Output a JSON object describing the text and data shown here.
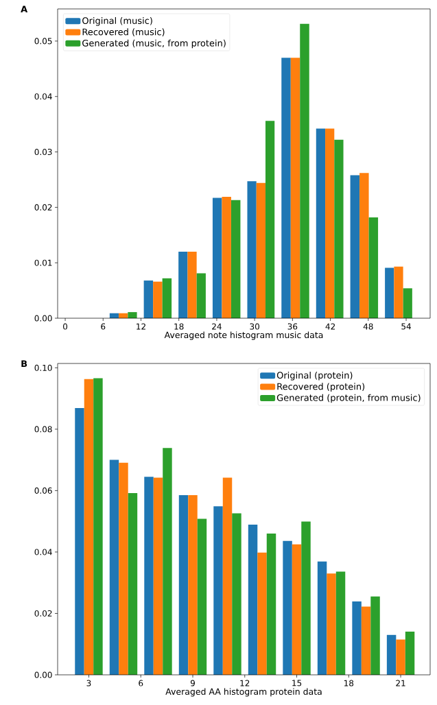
{
  "chart_data": [
    {
      "type": "histogram",
      "xlabel": "Averaged note histogram music data",
      "annotations": [
        "A"
      ],
      "bins": [
        6.5,
        11.9,
        17.4,
        22.8,
        28.3,
        33.7,
        39.2,
        44.6,
        50.1,
        55.5
      ],
      "series": [
        {
          "name": "Original (music)",
          "color": "#1f77b4",
          "values": [
            0.0009,
            0.0068,
            0.012,
            0.0217,
            0.0247,
            0.047,
            0.0342,
            0.0258,
            0.0091
          ]
        },
        {
          "name": "Recovered (music)",
          "color": "#ff7f0e",
          "values": [
            0.0009,
            0.0066,
            0.012,
            0.0219,
            0.0244,
            0.047,
            0.0342,
            0.0262,
            0.0093
          ]
        },
        {
          "name": "Generated (music, from protein)",
          "color": "#2ca02c",
          "values": [
            0.0011,
            0.0072,
            0.0081,
            0.0213,
            0.0356,
            0.0531,
            0.0322,
            0.0182,
            0.0054
          ]
        }
      ],
      "xlim": [
        -1.2,
        57.8
      ],
      "ylim": [
        0,
        0.0558
      ],
      "xticks": [
        0,
        6,
        12,
        18,
        24,
        30,
        36,
        42,
        48,
        54
      ],
      "yticks": [
        {
          "value": 0,
          "label": "0.00"
        },
        {
          "value": 0.01,
          "label": "0.01"
        },
        {
          "value": 0.02,
          "label": "0.02"
        },
        {
          "value": 0.03,
          "label": "0.03"
        },
        {
          "value": 0.04,
          "label": "0.04"
        },
        {
          "value": 0.05,
          "label": "0.05"
        }
      ],
      "legend": "top left"
    },
    {
      "type": "histogram",
      "xlabel": "Averaged AA histogram protein data",
      "annotations": [
        "B"
      ],
      "bins": [
        2,
        4,
        6,
        8,
        10,
        12,
        14,
        16,
        18,
        20,
        22
      ],
      "series": [
        {
          "name": "Original (protein)",
          "color": "#1f77b4",
          "values": [
            0.0869,
            0.07,
            0.0645,
            0.0585,
            0.0549,
            0.0489,
            0.0436,
            0.0369,
            0.0239,
            0.013
          ]
        },
        {
          "name": "Recovered (protein)",
          "color": "#ff7f0e",
          "values": [
            0.0963,
            0.0691,
            0.0642,
            0.0585,
            0.0642,
            0.0398,
            0.0425,
            0.033,
            0.0222,
            0.0115
          ]
        },
        {
          "name": "Generated (protein, from music)",
          "color": "#2ca02c",
          "values": [
            0.0966,
            0.0592,
            0.0739,
            0.0508,
            0.0526,
            0.046,
            0.0499,
            0.0336,
            0.0255,
            0.0141
          ]
        }
      ],
      "xlim": [
        1.2,
        22.7
      ],
      "ylim": [
        0,
        0.1014
      ],
      "xticks": [
        3,
        6,
        9,
        12,
        15,
        18,
        21
      ],
      "yticks": [
        {
          "value": 0,
          "label": "0.00"
        },
        {
          "value": 0.02,
          "label": "0.02"
        },
        {
          "value": 0.04,
          "label": "0.04"
        },
        {
          "value": 0.06,
          "label": "0.06"
        },
        {
          "value": 0.08,
          "label": "0.08"
        },
        {
          "value": 0.1,
          "label": "0.10"
        }
      ],
      "legend": "top right"
    }
  ]
}
